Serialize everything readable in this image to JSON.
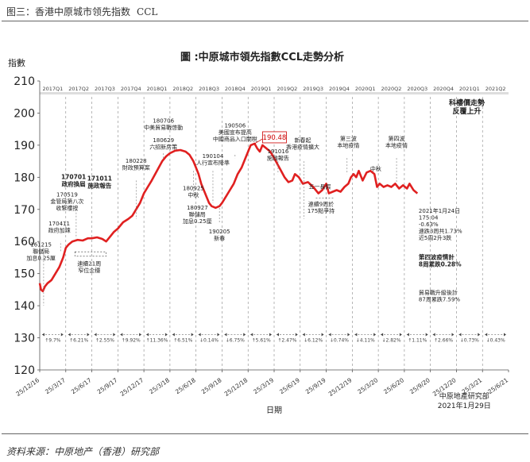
{
  "header": {
    "title_cn": "图三：香港中原城市领先指数",
    "title_en": "CCL"
  },
  "footer": {
    "source": "资料来源：中原地产（香港）研究部"
  },
  "chart_data": {
    "type": "line",
    "title": "圖 :中原城市領先指數CCL走勢分析",
    "ylabel": "指數",
    "xlabel": "日期",
    "ylim": [
      120,
      210
    ],
    "yticks": [
      120,
      130,
      140,
      150,
      160,
      170,
      180,
      190,
      200,
      210
    ],
    "grid": false,
    "line_color": "#e02020",
    "quarters": [
      "2017Q1",
      "2017Q2",
      "2017Q3",
      "2017Q4",
      "2018Q1",
      "2018Q2",
      "2018Q3",
      "2018Q4",
      "2019Q1",
      "2019Q2",
      "2019Q3",
      "2019Q4",
      "2020Q1",
      "2020Q2",
      "2020Q3",
      "2020Q4",
      "2021Q1",
      "2021Q2"
    ],
    "x_ticks": [
      "25/12/16",
      "25/3/17",
      "25/6/17",
      "25/9/17",
      "25/12/17",
      "25/3/18",
      "25/6/18",
      "25/9/18",
      "25/12/18",
      "25/3/19",
      "25/6/19",
      "25/9/19",
      "25/12/19",
      "25/3/20",
      "25/6/20",
      "25/9/20",
      "25/12/20",
      "25/3/21",
      "25/6/21"
    ],
    "series": [
      {
        "values": [
          [
            0,
            147
          ],
          [
            0.05,
            145
          ],
          [
            0.12,
            144.5
          ],
          [
            0.2,
            146
          ],
          [
            0.3,
            147
          ],
          [
            0.45,
            148
          ],
          [
            0.6,
            150
          ],
          [
            0.75,
            152
          ],
          [
            0.9,
            155
          ],
          [
            1.0,
            158
          ],
          [
            1.1,
            159
          ],
          [
            1.25,
            160
          ],
          [
            1.45,
            160.5
          ],
          [
            1.65,
            160.3
          ],
          [
            1.85,
            161
          ],
          [
            2.0,
            161
          ],
          [
            2.2,
            161.3
          ],
          [
            2.4,
            160.8
          ],
          [
            2.55,
            160
          ],
          [
            2.7,
            161.5
          ],
          [
            2.85,
            163
          ],
          [
            3.0,
            164
          ],
          [
            3.2,
            166
          ],
          [
            3.4,
            167
          ],
          [
            3.55,
            168
          ],
          [
            3.7,
            170
          ],
          [
            3.85,
            172
          ],
          [
            4.0,
            175
          ],
          [
            4.15,
            177
          ],
          [
            4.3,
            179
          ],
          [
            4.5,
            182
          ],
          [
            4.7,
            185
          ],
          [
            4.85,
            186.5
          ],
          [
            5.0,
            187.5
          ],
          [
            5.2,
            188.3
          ],
          [
            5.4,
            188.5
          ],
          [
            5.6,
            188
          ],
          [
            5.75,
            187
          ],
          [
            5.9,
            185
          ],
          [
            6.0,
            183
          ],
          [
            6.1,
            181
          ],
          [
            6.2,
            178
          ],
          [
            6.3,
            176
          ],
          [
            6.4,
            174
          ],
          [
            6.5,
            172
          ],
          [
            6.6,
            171
          ],
          [
            6.75,
            170.5
          ],
          [
            6.9,
            171
          ],
          [
            7.0,
            172
          ],
          [
            7.15,
            174
          ],
          [
            7.3,
            176
          ],
          [
            7.45,
            178
          ],
          [
            7.6,
            181
          ],
          [
            7.75,
            183
          ],
          [
            7.9,
            186
          ],
          [
            8.0,
            188
          ],
          [
            8.1,
            190
          ],
          [
            8.25,
            190.5
          ],
          [
            8.35,
            189
          ],
          [
            8.45,
            188
          ],
          [
            8.55,
            190
          ],
          [
            8.7,
            189
          ],
          [
            8.85,
            188
          ],
          [
            9.0,
            186
          ],
          [
            9.2,
            183
          ],
          [
            9.4,
            180
          ],
          [
            9.55,
            178.5
          ],
          [
            9.7,
            179
          ],
          [
            9.8,
            181
          ],
          [
            9.95,
            180
          ],
          [
            10.1,
            178
          ],
          [
            10.3,
            178.5
          ],
          [
            10.5,
            177
          ],
          [
            10.7,
            175
          ],
          [
            10.85,
            176
          ],
          [
            11.0,
            178
          ],
          [
            11.1,
            175
          ],
          [
            11.25,
            175.5
          ],
          [
            11.4,
            176
          ],
          [
            11.55,
            175.5
          ],
          [
            11.7,
            177
          ],
          [
            11.85,
            178
          ],
          [
            11.95,
            180
          ],
          [
            12.05,
            181
          ],
          [
            12.15,
            180
          ],
          [
            12.25,
            182
          ],
          [
            12.4,
            179
          ],
          [
            12.55,
            181.5
          ],
          [
            12.7,
            182
          ],
          [
            12.85,
            181
          ],
          [
            12.95,
            177
          ],
          [
            13.05,
            178
          ],
          [
            13.2,
            177
          ],
          [
            13.35,
            177.5
          ],
          [
            13.5,
            177
          ],
          [
            13.65,
            178
          ],
          [
            13.8,
            176.5
          ],
          [
            13.95,
            177.5
          ],
          [
            14.1,
            176.5
          ],
          [
            14.2,
            178
          ],
          [
            14.35,
            176
          ],
          [
            14.5,
            175
          ]
        ]
      }
    ],
    "marker": {
      "label": "190.48",
      "x": 8.25,
      "y": 190.48
    },
    "legend_note": "科樓價走勢\n反覆上升",
    "annotations": [
      {
        "text": "161215\n聯儲局\n加息0.25厘",
        "x": 0.05,
        "y": 158.5
      },
      {
        "text": "170411\n政府加辣",
        "x": 0.75,
        "y": 165
      },
      {
        "text": "170519\n金管局第八次\n收緊樓按",
        "x": 1.05,
        "y": 174
      },
      {
        "text": "170701\n政府換屆",
        "x": 1.3,
        "y": 179.5,
        "bold": true
      },
      {
        "text": "171011\n施政報告",
        "x": 2.3,
        "y": 179,
        "bold": true
      },
      {
        "text": "連續21周\n窄位企穩",
        "x": 1.9,
        "y": 152.5
      },
      {
        "text": "180228\n財政預算案",
        "x": 3.7,
        "y": 184.5
      },
      {
        "text": "180706\n中美貿易戰啓動",
        "x": 4.75,
        "y": 197
      },
      {
        "text": "180629\n六招新房策",
        "x": 4.75,
        "y": 191
      },
      {
        "text": "180925\n中秋",
        "x": 5.9,
        "y": 176
      },
      {
        "text": "180927\n聯儲局\n加息0.25厘",
        "x": 6.05,
        "y": 170
      },
      {
        "text": "190104\n人行宣布降準",
        "x": 6.65,
        "y": 186
      },
      {
        "text": "190205\n新春",
        "x": 6.9,
        "y": 162.5
      },
      {
        "text": "190506\n美國宣布提高\n中國商品入口關稅",
        "x": 7.5,
        "y": 195.5
      },
      {
        "text": "191016\n施政報告",
        "x": 9.15,
        "y": 187.5
      },
      {
        "text": "新春起\n香港疫情擴大",
        "x": 10.1,
        "y": 191
      },
      {
        "text": "五一長假",
        "x": 10.75,
        "y": 176.5
      },
      {
        "text": "連續9周於\n175點爭持",
        "x": 10.8,
        "y": 171
      },
      {
        "text": "第三波\n本地疫情",
        "x": 11.85,
        "y": 191.5
      },
      {
        "text": "中秋",
        "x": 12.9,
        "y": 182
      },
      {
        "text": "第四波\n本地疫情",
        "x": 13.7,
        "y": 191.5
      },
      {
        "text": "2021年1月24日\n175.04\n-0.63%\n連跌3周共1.73%\n近5周2升3跌",
        "x": 14.55,
        "y": 169
      },
      {
        "text": "第四波疫情計\n8周累跌0.28%",
        "x": 14.55,
        "y": 154.5,
        "bold": true
      },
      {
        "text": "貿易戰升級後計\n87周累跌7.59%",
        "x": 14.55,
        "y": 143.5
      }
    ],
    "qoq_changes": [
      "↑9.7%",
      "↑6.21%",
      "↑2.55%",
      "↑9.92%",
      "↑11.36%",
      "↑6.51%",
      "↓0.14%",
      "↓6.75%",
      "↑5.61%",
      "↑2.47%",
      "↓6.12%",
      "↓0.74%",
      "↓4.11%",
      "↓2.82%",
      "↑1.11%",
      "↑2.66%",
      "↓0.73%",
      "↓0.43%"
    ],
    "credit": [
      "中原地產研究部",
      "2021年1月29日"
    ]
  }
}
